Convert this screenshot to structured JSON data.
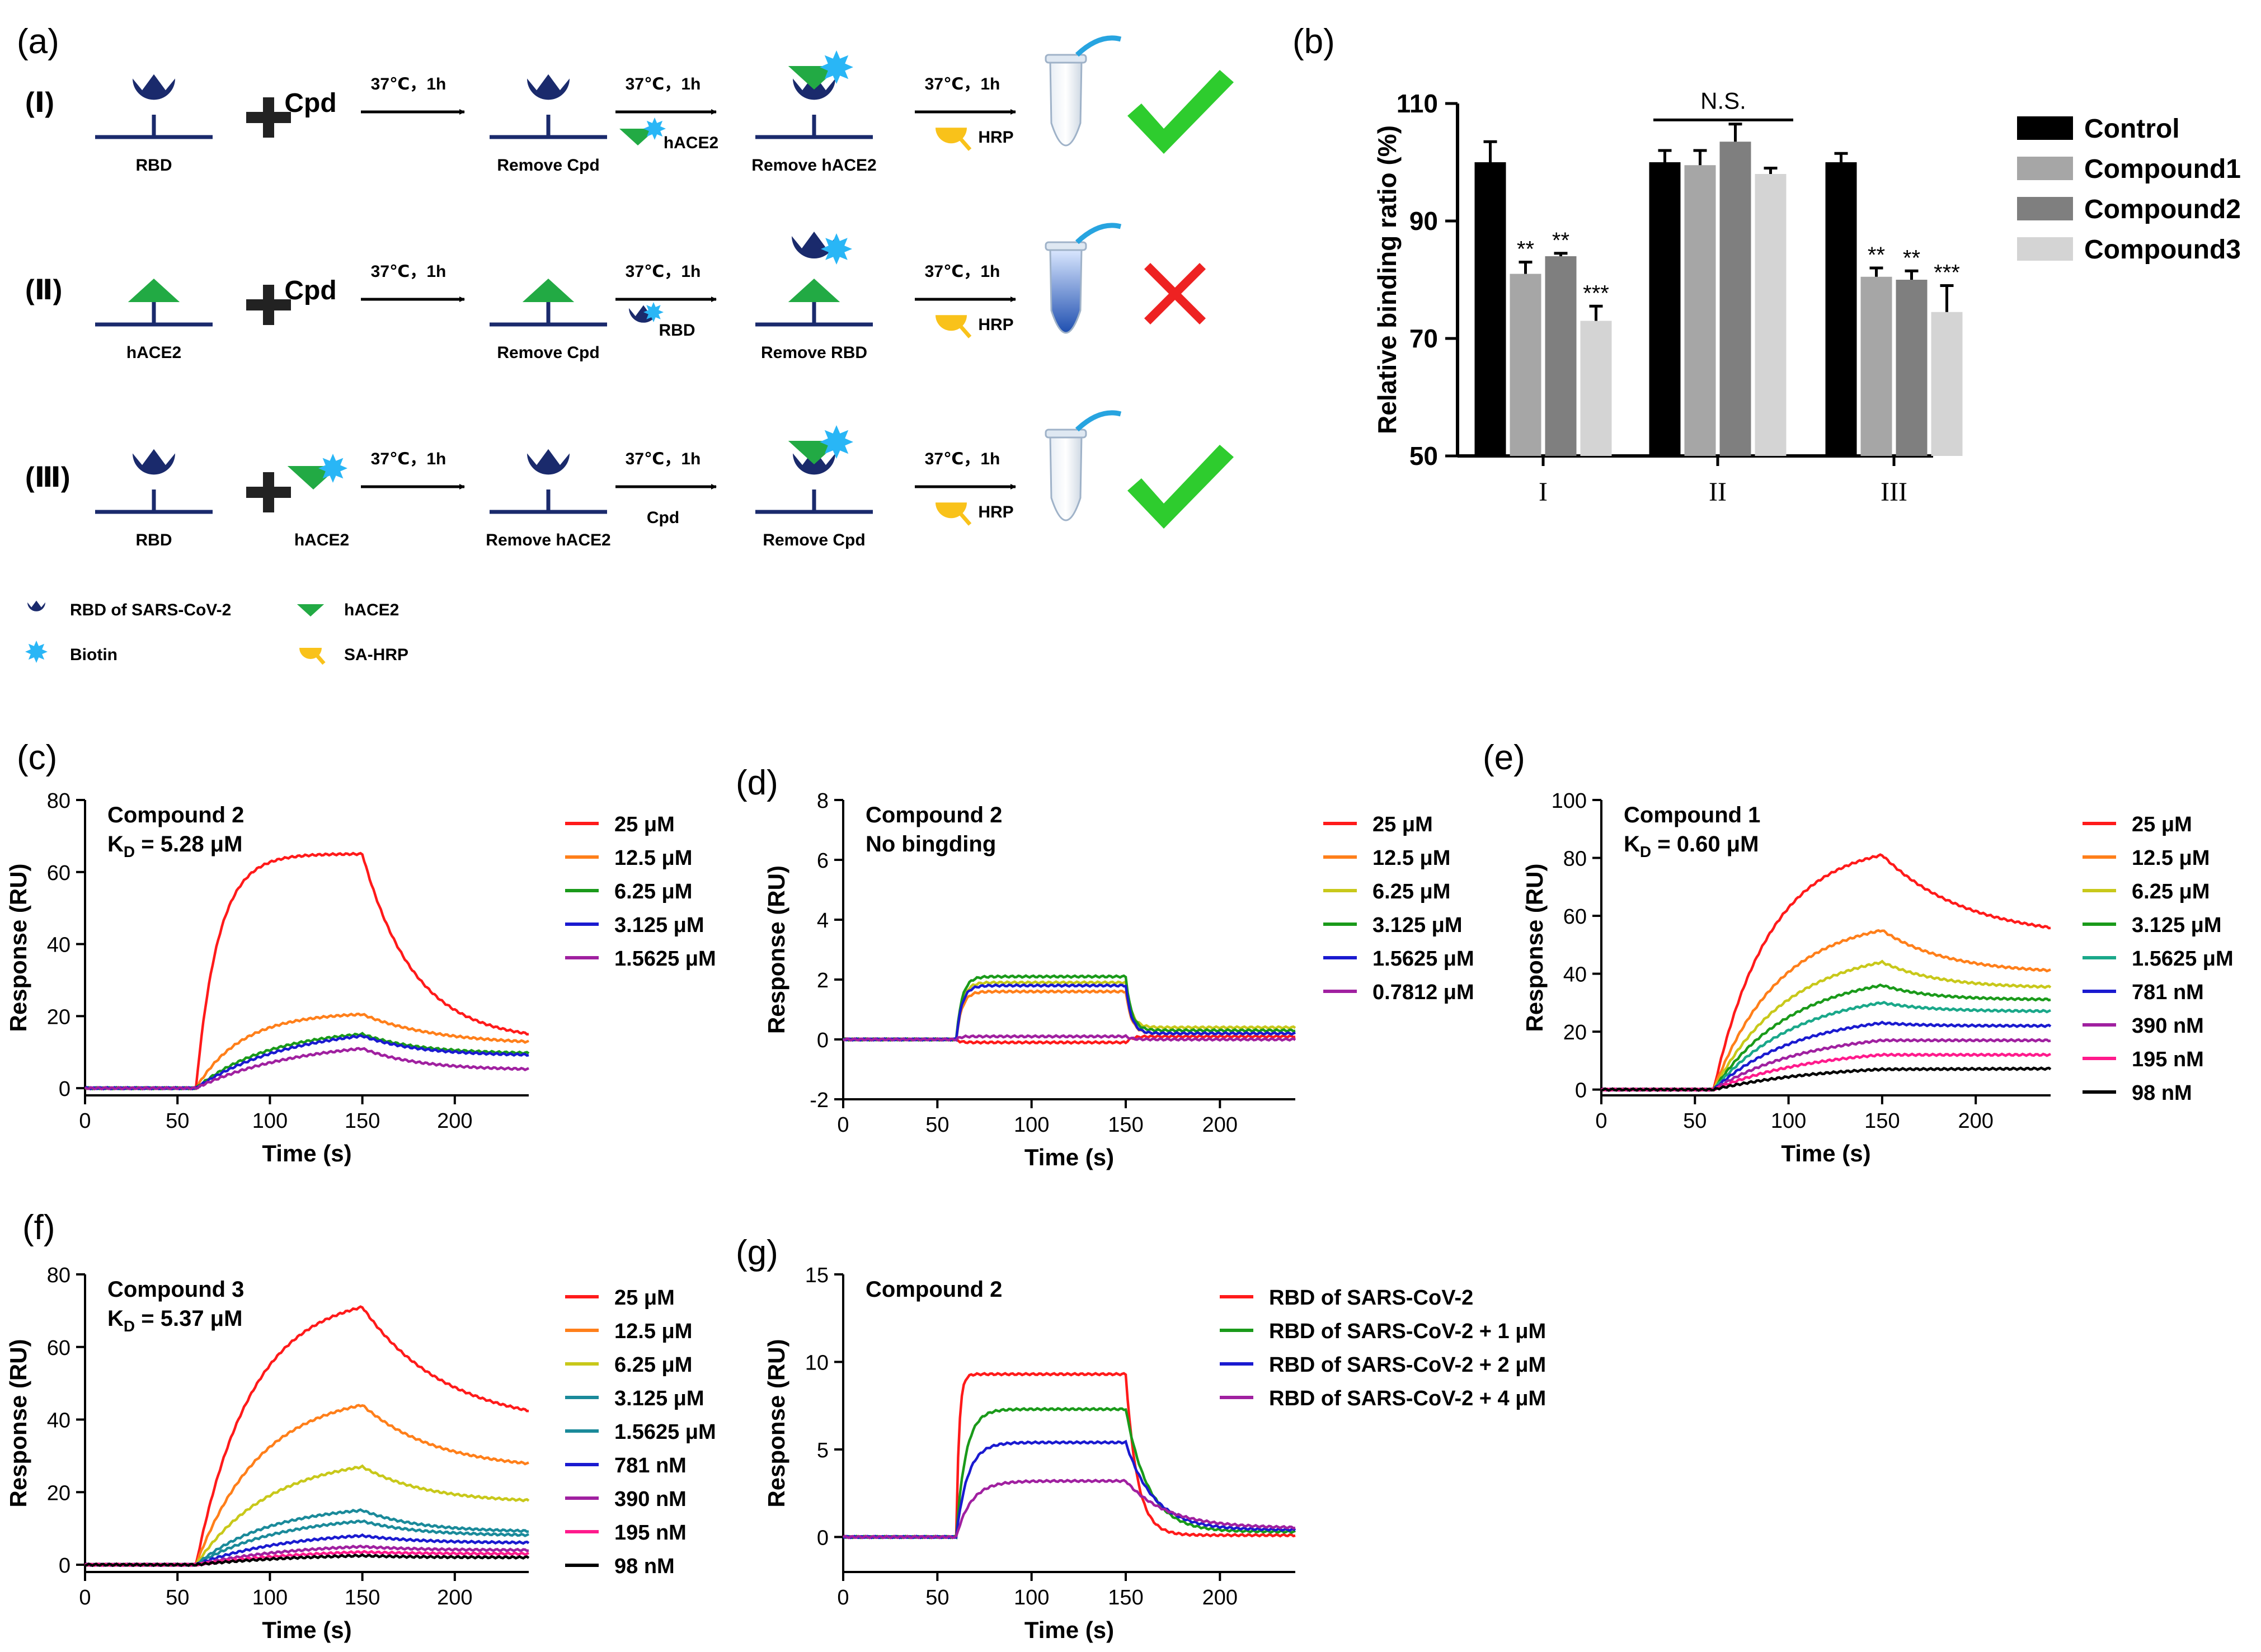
{
  "panel_labels": {
    "a": "(a)",
    "b": "(b)",
    "c": "(c)",
    "d": "(d)",
    "e": "(e)",
    "f": "(f)",
    "g": "(g)"
  },
  "scheme": {
    "rows": [
      {
        "numeral": "(Ⅰ)",
        "immobilized": "RBD",
        "addend": "Cpd",
        "step1": "37℃，1h",
        "after1": "Remove Cpd",
        "step2": "37℃，1h",
        "reagent2": "hACE2",
        "after2": "Remove hACE2",
        "step3": "37℃，1h",
        "reagent3": "HRP",
        "result": "check"
      },
      {
        "numeral": "(Ⅱ)",
        "immobilized": "hACE2",
        "addend": "Cpd",
        "step1": "37℃，1h",
        "after1": "Remove Cpd",
        "step2": "37℃，1h",
        "reagent2": "RBD",
        "after2": "Remove RBD",
        "step3": "37℃，1h",
        "reagent3": "HRP",
        "result": "cross"
      },
      {
        "numeral": "(Ⅲ)",
        "immobilized": "RBD",
        "addend": "hACE2",
        "step1": "37℃，1h",
        "after1": "Remove hACE2",
        "step2": "37℃，1h",
        "reagent2": "Cpd",
        "after2": "Remove Cpd",
        "step3": "37℃，1h",
        "reagent3": "HRP",
        "result": "check"
      }
    ],
    "legend": [
      {
        "icon": "rbd-icon",
        "label": "RBD of SARS-CoV-2"
      },
      {
        "icon": "hace2-icon",
        "label": "hACE2"
      },
      {
        "icon": "biotin-icon",
        "label": "Biotin"
      },
      {
        "icon": "sa-hrp-icon",
        "label": "SA-HRP"
      }
    ],
    "colors": {
      "rbd": "#1a2a6c",
      "hace2": "#22aa44",
      "biotin": "#29b6f6",
      "hrp": "#f9c21a",
      "check": "#2ecc2e",
      "cross": "#ee2222"
    }
  },
  "chart_data": [
    {
      "id": "b",
      "type": "bar",
      "ylabel": "Relative binding ratio (%)",
      "ylim": [
        50,
        110
      ],
      "yticks": [
        50,
        70,
        90,
        110
      ],
      "categories": [
        "I",
        "II",
        "III"
      ],
      "series": [
        {
          "name": "Control",
          "color": "#000000",
          "values": [
            100,
            100,
            100
          ],
          "errors": [
            3.5,
            2,
            1.5
          ],
          "sig": [
            "",
            "",
            ""
          ]
        },
        {
          "name": "Compound1",
          "color": "#a6a6a6",
          "values": [
            81,
            99.5,
            80.5
          ],
          "errors": [
            2,
            2.5,
            1.5
          ],
          "sig": [
            "**",
            "",
            "**"
          ]
        },
        {
          "name": "Compound2",
          "color": "#7f7f7f",
          "values": [
            84,
            103.5,
            80
          ],
          "errors": [
            0.5,
            3,
            1.5
          ],
          "sig": [
            "**",
            "",
            "**"
          ]
        },
        {
          "name": "Compound3",
          "color": "#d4d4d4",
          "values": [
            73,
            98,
            74.5
          ],
          "errors": [
            2.5,
            1,
            4.5
          ],
          "sig": [
            "***",
            "",
            "***"
          ]
        }
      ],
      "bracket_label": "N.S."
    },
    {
      "id": "c",
      "type": "line",
      "title": "Compound 2",
      "kd_prefix": "K",
      "kd_sub": "D",
      "kd_value": " = 5.28 μM",
      "xlabel": "Time (s)",
      "ylabel": "Response (RU)",
      "xlim": [
        0,
        240
      ],
      "ylim": [
        -2,
        80
      ],
      "xticks": [
        0,
        50,
        100,
        150,
        200
      ],
      "yticks": [
        0,
        20,
        40,
        60,
        80
      ],
      "series": [
        {
          "name": "25 μM",
          "color": "#ff1a1a",
          "A": 65,
          "B": 0,
          "tau": 12,
          "D": 13,
          "koff": 28
        },
        {
          "name": "12.5 μM",
          "color": "#ff7f1a",
          "A": 20.5,
          "B": 0,
          "tau": 25,
          "D": 12,
          "koff": 40
        },
        {
          "name": "6.25 μM",
          "color": "#1a9a1a",
          "A": 15,
          "B": 0,
          "tau": 40,
          "D": 9.5,
          "koff": 30
        },
        {
          "name": "3.125 μM",
          "color": "#1a1ad0",
          "A": 14.5,
          "B": 0,
          "tau": 50,
          "D": 9,
          "koff": 30
        },
        {
          "name": "1.5625 μM",
          "color": "#a020a0",
          "A": 11,
          "B": 0,
          "tau": 55,
          "D": 5,
          "koff": 30
        }
      ]
    },
    {
      "id": "d",
      "type": "line",
      "title": "Compound 2",
      "subtitle": "No bingding",
      "xlabel": "Time (s)",
      "ylabel": "Response (RU)",
      "xlim": [
        0,
        240
      ],
      "ylim": [
        -2,
        8
      ],
      "xticks": [
        0,
        50,
        100,
        150,
        200
      ],
      "yticks": [
        -2,
        0,
        2,
        4,
        6,
        8
      ],
      "series": [
        {
          "name": "25 μM",
          "color": "#ff1a1a",
          "A": -0.1,
          "B": 0,
          "tau": 2,
          "D": 0.1,
          "koff": 3
        },
        {
          "name": "12.5 μM",
          "color": "#ff7f1a",
          "A": 1.6,
          "B": 0,
          "tau": 3,
          "D": 0.2,
          "koff": 3
        },
        {
          "name": "6.25 μM",
          "color": "#c8c81a",
          "A": 1.9,
          "B": 0,
          "tau": 3,
          "D": 0.4,
          "koff": 3
        },
        {
          "name": "3.125 μM",
          "color": "#1a9a1a",
          "A": 2.1,
          "B": 0,
          "tau": 3,
          "D": 0.3,
          "koff": 3
        },
        {
          "name": "1.5625 μM",
          "color": "#1a1ad0",
          "A": 1.8,
          "B": 0,
          "tau": 3,
          "D": 0.2,
          "koff": 3
        },
        {
          "name": "0.7812 μM",
          "color": "#a020a0",
          "A": 0.1,
          "B": 0,
          "tau": 2,
          "D": 0.0,
          "koff": 3
        }
      ]
    },
    {
      "id": "e",
      "type": "line",
      "title": "Compound 1",
      "kd_prefix": "K",
      "kd_sub": "D",
      "kd_value": " = 0.60 μM",
      "xlabel": "Time (s)",
      "ylabel": "Response (RU)",
      "xlim": [
        0,
        240
      ],
      "ylim": [
        -2,
        100
      ],
      "xticks": [
        0,
        50,
        100,
        150,
        200
      ],
      "yticks": [
        0,
        20,
        40,
        60,
        80,
        100
      ],
      "series": [
        {
          "name": "25 μM",
          "color": "#ff1a1a",
          "A": 81,
          "B": 0,
          "tau": 30,
          "D": 52,
          "koff": 45
        },
        {
          "name": "12.5 μM",
          "color": "#ff7f1a",
          "A": 55,
          "B": 0,
          "tau": 35,
          "D": 40,
          "koff": 35
        },
        {
          "name": "6.25 μM",
          "color": "#c8c81a",
          "A": 44,
          "B": 0,
          "tau": 40,
          "D": 35,
          "koff": 30
        },
        {
          "name": "3.125 μM",
          "color": "#1a9a1a",
          "A": 36,
          "B": 0,
          "tau": 42,
          "D": 31,
          "koff": 25
        },
        {
          "name": "1.5625 μM",
          "color": "#1aa88a",
          "A": 30,
          "B": 0,
          "tau": 45,
          "D": 27,
          "koff": 25
        },
        {
          "name": "781 nM",
          "color": "#1a1ad0",
          "A": 23,
          "B": 0,
          "tau": 45,
          "D": 22,
          "koff": 20
        },
        {
          "name": "390 nM",
          "color": "#a020a0",
          "A": 17,
          "B": 0,
          "tau": 50,
          "D": 17,
          "koff": 20
        },
        {
          "name": "195 nM",
          "color": "#ff1a8c",
          "A": 12,
          "B": 0,
          "tau": 55,
          "D": 12,
          "koff": 20
        },
        {
          "name": "98 nM",
          "color": "#000000",
          "A": 7,
          "B": 0,
          "tau": 60,
          "D": 9.5,
          "koff": 999
        }
      ]
    },
    {
      "id": "f",
      "type": "line",
      "title": "Compound 3",
      "kd_prefix": "K",
      "kd_sub": "D",
      "kd_value": " = 5.37 μM",
      "xlabel": "Time (s)",
      "ylabel": "Response (RU)",
      "xlim": [
        0,
        240
      ],
      "ylim": [
        -2,
        80
      ],
      "xticks": [
        0,
        50,
        100,
        150,
        200
      ],
      "yticks": [
        0,
        20,
        40,
        60,
        80
      ],
      "series": [
        {
          "name": "25 μM",
          "color": "#ff1a1a",
          "A": 71,
          "B": 0,
          "tau": 30,
          "D": 38,
          "koff": 45
        },
        {
          "name": "12.5 μM",
          "color": "#ff7f1a",
          "A": 44,
          "B": 0,
          "tau": 35,
          "D": 26,
          "koff": 40
        },
        {
          "name": "6.25 μM",
          "color": "#c8c81a",
          "A": 27,
          "B": 0,
          "tau": 40,
          "D": 17,
          "koff": 35
        },
        {
          "name": "3.125 μM",
          "color": "#1a8a9a",
          "A": 15,
          "B": 0,
          "tau": 40,
          "D": 9,
          "koff": 30
        },
        {
          "name": "1.5625 μM",
          "color": "#1a8a9a",
          "A": 12,
          "B": 0,
          "tau": 45,
          "D": 8,
          "koff": 30
        },
        {
          "name": "781 nM",
          "color": "#1a1ad0",
          "A": 8,
          "B": 0,
          "tau": 50,
          "D": 6,
          "koff": 30
        },
        {
          "name": "390 nM",
          "color": "#a020a0",
          "A": 5,
          "B": 0,
          "tau": 55,
          "D": 4,
          "koff": 30
        },
        {
          "name": "195 nM",
          "color": "#ff1a8c",
          "A": 3.5,
          "B": 0,
          "tau": 60,
          "D": 3,
          "koff": 30
        },
        {
          "name": "98 nM",
          "color": "#000000",
          "A": 2.5,
          "B": 0,
          "tau": 60,
          "D": 2,
          "koff": 30
        }
      ]
    },
    {
      "id": "g",
      "type": "line",
      "title": "Compound 2",
      "xlabel": "Time (s)",
      "ylabel": "Response (RU)",
      "xlim": [
        0,
        240
      ],
      "ylim": [
        -2,
        15
      ],
      "xticks": [
        0,
        50,
        100,
        150,
        200
      ],
      "yticks": [
        0,
        5,
        10,
        15
      ],
      "series": [
        {
          "name": "RBD of SARS-CoV-2",
          "color": "#ff1a1a",
          "A": 9.3,
          "B": 0,
          "tau": 1.5,
          "D": 0.1,
          "koff": 6
        },
        {
          "name": "RBD of SARS-CoV-2 + 1 μM",
          "color": "#1a9a1a",
          "A": 7.3,
          "B": 0,
          "tau": 5,
          "D": 0.3,
          "koff": 12
        },
        {
          "name": "RBD of SARS-CoV-2 + 2 μM",
          "color": "#1a1ad0",
          "A": 5.4,
          "B": 0,
          "tau": 6,
          "D": 0.4,
          "koff": 15
        },
        {
          "name": "RBD of SARS-CoV-2 + 4 μM",
          "color": "#a020a0",
          "A": 3.2,
          "B": 0,
          "tau": 8,
          "D": 0.5,
          "koff": 22
        }
      ]
    }
  ]
}
